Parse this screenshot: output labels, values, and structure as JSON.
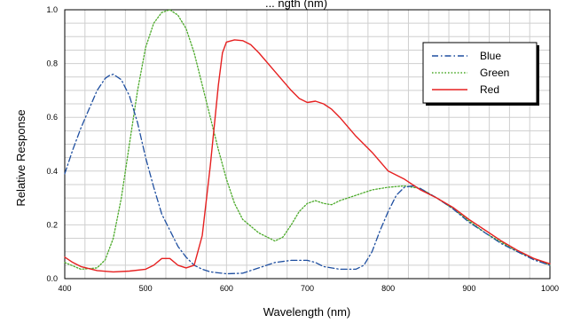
{
  "chart_data": {
    "type": "line",
    "title": "... ngth (nm)",
    "xlabel": "Wavelength (nm)",
    "ylabel": "Relative Response",
    "xlim": [
      400,
      1000
    ],
    "ylim": [
      0.0,
      1.0
    ],
    "x_ticks": [
      "400",
      "500",
      "600",
      "700",
      "800",
      "900",
      "1000"
    ],
    "y_ticks": [
      "0.0",
      "0.2",
      "0.4",
      "0.6",
      "0.8",
      "1.0"
    ],
    "x_minor_step": 25,
    "y_minor_step": 0.05,
    "grid": true,
    "legend_position": "top-right",
    "series": [
      {
        "name": "Blue",
        "color": "#1f4fa0",
        "dash": "dashdot",
        "points": [
          [
            400,
            0.39
          ],
          [
            410,
            0.48
          ],
          [
            420,
            0.56
          ],
          [
            430,
            0.63
          ],
          [
            440,
            0.7
          ],
          [
            450,
            0.745
          ],
          [
            455,
            0.755
          ],
          [
            460,
            0.76
          ],
          [
            470,
            0.74
          ],
          [
            480,
            0.68
          ],
          [
            490,
            0.58
          ],
          [
            500,
            0.45
          ],
          [
            510,
            0.34
          ],
          [
            520,
            0.24
          ],
          [
            530,
            0.18
          ],
          [
            540,
            0.12
          ],
          [
            550,
            0.08
          ],
          [
            560,
            0.05
          ],
          [
            570,
            0.035
          ],
          [
            580,
            0.025
          ],
          [
            600,
            0.018
          ],
          [
            620,
            0.02
          ],
          [
            640,
            0.04
          ],
          [
            660,
            0.06
          ],
          [
            680,
            0.068
          ],
          [
            700,
            0.068
          ],
          [
            710,
            0.06
          ],
          [
            720,
            0.045
          ],
          [
            740,
            0.035
          ],
          [
            760,
            0.035
          ],
          [
            770,
            0.05
          ],
          [
            780,
            0.1
          ],
          [
            790,
            0.18
          ],
          [
            800,
            0.25
          ],
          [
            810,
            0.31
          ],
          [
            820,
            0.34
          ],
          [
            830,
            0.345
          ],
          [
            840,
            0.335
          ],
          [
            860,
            0.3
          ],
          [
            880,
            0.26
          ],
          [
            900,
            0.21
          ],
          [
            920,
            0.17
          ],
          [
            940,
            0.13
          ],
          [
            960,
            0.1
          ],
          [
            980,
            0.07
          ],
          [
            1000,
            0.05
          ]
        ]
      },
      {
        "name": "Green",
        "color": "#4caa2a",
        "dash": "dotted",
        "points": [
          [
            400,
            0.06
          ],
          [
            420,
            0.035
          ],
          [
            440,
            0.04
          ],
          [
            450,
            0.07
          ],
          [
            460,
            0.15
          ],
          [
            470,
            0.3
          ],
          [
            480,
            0.5
          ],
          [
            490,
            0.7
          ],
          [
            500,
            0.86
          ],
          [
            510,
            0.95
          ],
          [
            520,
            0.99
          ],
          [
            530,
            1.0
          ],
          [
            540,
            0.98
          ],
          [
            550,
            0.93
          ],
          [
            560,
            0.84
          ],
          [
            570,
            0.72
          ],
          [
            580,
            0.6
          ],
          [
            590,
            0.48
          ],
          [
            600,
            0.37
          ],
          [
            610,
            0.28
          ],
          [
            620,
            0.22
          ],
          [
            640,
            0.17
          ],
          [
            660,
            0.14
          ],
          [
            670,
            0.155
          ],
          [
            680,
            0.2
          ],
          [
            690,
            0.25
          ],
          [
            700,
            0.28
          ],
          [
            710,
            0.29
          ],
          [
            720,
            0.28
          ],
          [
            730,
            0.275
          ],
          [
            740,
            0.29
          ],
          [
            760,
            0.31
          ],
          [
            780,
            0.33
          ],
          [
            800,
            0.34
          ],
          [
            820,
            0.345
          ],
          [
            840,
            0.335
          ],
          [
            860,
            0.3
          ],
          [
            880,
            0.26
          ],
          [
            900,
            0.215
          ],
          [
            920,
            0.17
          ],
          [
            940,
            0.135
          ],
          [
            960,
            0.1
          ],
          [
            980,
            0.075
          ],
          [
            1000,
            0.05
          ]
        ]
      },
      {
        "name": "Red",
        "color": "#e62020",
        "dash": "solid",
        "points": [
          [
            400,
            0.08
          ],
          [
            410,
            0.06
          ],
          [
            420,
            0.045
          ],
          [
            440,
            0.03
          ],
          [
            460,
            0.025
          ],
          [
            480,
            0.028
          ],
          [
            500,
            0.035
          ],
          [
            510,
            0.05
          ],
          [
            520,
            0.075
          ],
          [
            530,
            0.075
          ],
          [
            540,
            0.05
          ],
          [
            550,
            0.04
          ],
          [
            560,
            0.05
          ],
          [
            570,
            0.16
          ],
          [
            580,
            0.42
          ],
          [
            590,
            0.72
          ],
          [
            595,
            0.84
          ],
          [
            600,
            0.88
          ],
          [
            610,
            0.888
          ],
          [
            620,
            0.885
          ],
          [
            630,
            0.87
          ],
          [
            640,
            0.84
          ],
          [
            660,
            0.77
          ],
          [
            680,
            0.7
          ],
          [
            690,
            0.67
          ],
          [
            700,
            0.655
          ],
          [
            710,
            0.66
          ],
          [
            720,
            0.65
          ],
          [
            730,
            0.63
          ],
          [
            740,
            0.6
          ],
          [
            760,
            0.53
          ],
          [
            780,
            0.47
          ],
          [
            800,
            0.4
          ],
          [
            820,
            0.37
          ],
          [
            840,
            0.33
          ],
          [
            860,
            0.3
          ],
          [
            880,
            0.265
          ],
          [
            900,
            0.22
          ],
          [
            920,
            0.18
          ],
          [
            940,
            0.14
          ],
          [
            960,
            0.105
          ],
          [
            980,
            0.075
          ],
          [
            1000,
            0.055
          ]
        ]
      }
    ]
  }
}
